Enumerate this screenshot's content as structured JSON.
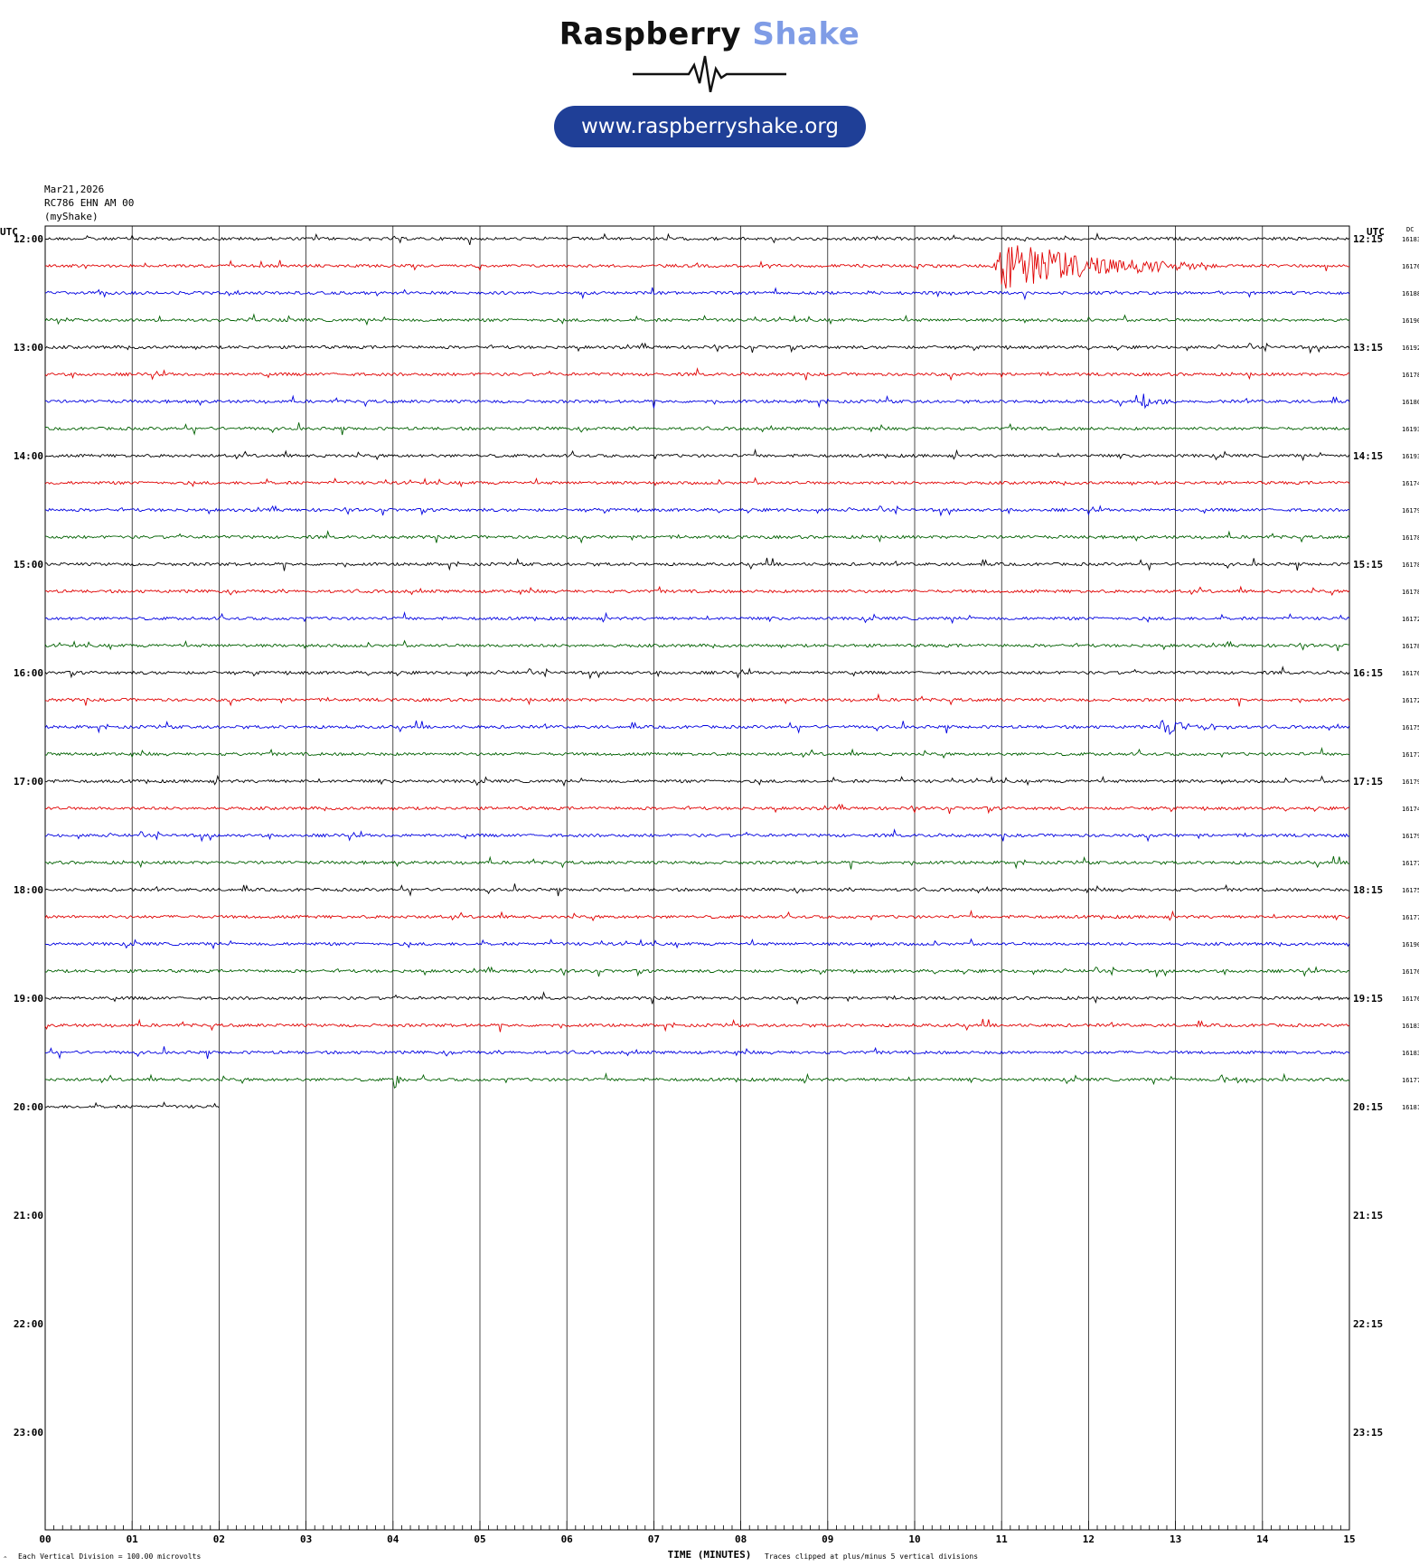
{
  "header": {
    "brand_part1": "Raspberry",
    "brand_part2": "Shake",
    "url": "www.raspberryshake.org",
    "date": "Mar21,2026",
    "station": "RC786 EHN AM 00",
    "source": "(myShake)"
  },
  "colors": {
    "brand_dark": "#111111",
    "brand_light": "#7f9ce6",
    "pill": "#1f3f97",
    "trace_cycle": [
      "#000000",
      "#e00000",
      "#0000e0",
      "#006000"
    ],
    "grid": "#000000"
  },
  "axis": {
    "left_header": "UTC",
    "right_header": "UTC",
    "dc_header": "DC",
    "xlabel": "TIME (MINUTES)",
    "left_footer": "Each Vertical Division =  100.00 microvolts",
    "right_footer": "Traces clipped at plus/minus 5 vertical divisions"
  },
  "chart_data": {
    "type": "line",
    "title": "",
    "x_ticks": [
      "00",
      "01",
      "02",
      "03",
      "04",
      "05",
      "06",
      "07",
      "08",
      "09",
      "10",
      "11",
      "12",
      "13",
      "14",
      "15"
    ],
    "xlim": [
      0,
      15
    ],
    "left_hour_labels": [
      "12:00",
      "13:00",
      "14:00",
      "15:00",
      "16:00",
      "17:00",
      "18:00",
      "19:00",
      "20:00",
      "21:00",
      "22:00",
      "23:00"
    ],
    "right_hour_labels": [
      "12:15",
      "13:15",
      "14:15",
      "15:15",
      "16:15",
      "17:15",
      "18:15",
      "19:15",
      "20:15",
      "21:15",
      "22:15",
      "23:15"
    ],
    "rows_total": 48,
    "rows_with_data": 33,
    "last_row_end_minute": 2.0,
    "dc_values": [
      "16183",
      "16176",
      "16188",
      "16190",
      "16192",
      "16178",
      "16180",
      "16193",
      "16193",
      "16174",
      "16179",
      "16178",
      "16178",
      "16178",
      "16172",
      "16178",
      "16176",
      "16172",
      "16175",
      "16177",
      "16179",
      "16174",
      "16179",
      "16177",
      "16175",
      "16177",
      "16190",
      "16176",
      "16176",
      "16183",
      "16183",
      "16177",
      "16181"
    ],
    "events": [
      {
        "row": 1,
        "start_minute": 10.9,
        "end_minute": 13.5,
        "peak_amplitude": 3.0
      },
      {
        "row": 6,
        "start_minute": 12.6,
        "end_minute": 13.0,
        "peak_amplitude": 1.0
      },
      {
        "row": 18,
        "start_minute": 12.8,
        "end_minute": 13.7,
        "peak_amplitude": 1.0
      },
      {
        "row": 31,
        "start_minute": 4.0,
        "end_minute": 4.3,
        "peak_amplitude": 1.0
      },
      {
        "row": 31,
        "start_minute": 13.5,
        "end_minute": 14.0,
        "peak_amplitude": 0.8
      }
    ]
  }
}
